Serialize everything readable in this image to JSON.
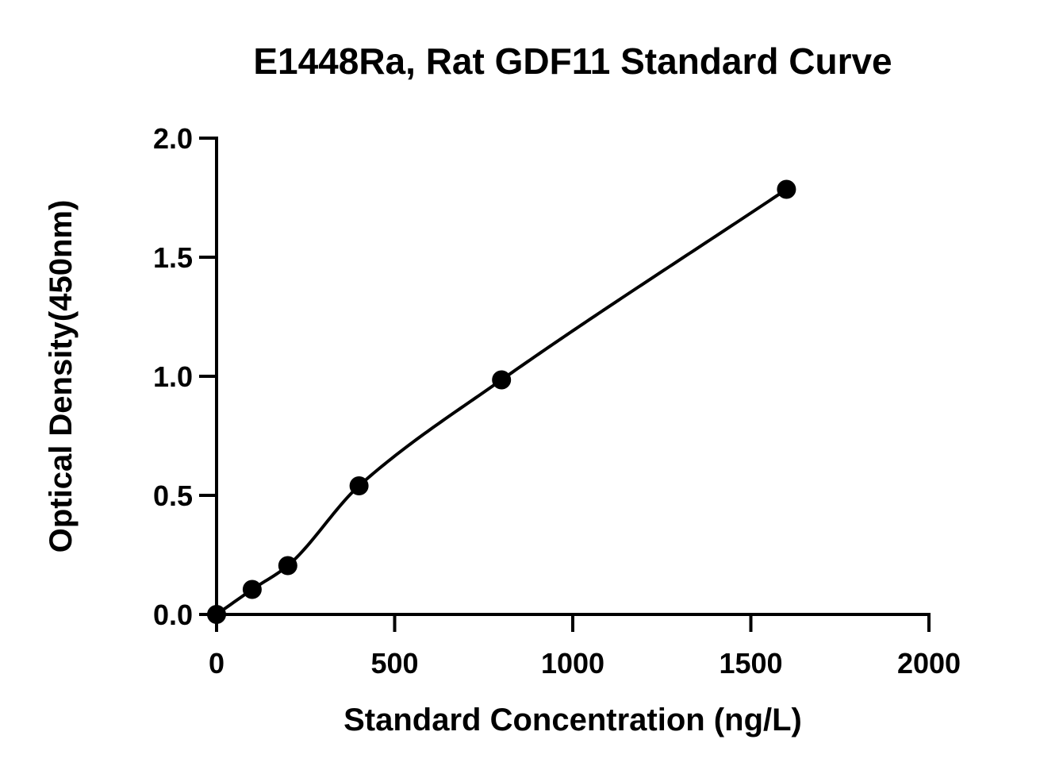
{
  "chart_data": {
    "type": "scatter",
    "title": "E1448Ra, Rat GDF11 Standard Curve",
    "xlabel": "Standard Concentration (ng/L)",
    "ylabel": "Optical Density(450nm)",
    "xlim": [
      0,
      2000
    ],
    "ylim": [
      0,
      2.0
    ],
    "x_ticks": [
      0,
      500,
      1000,
      1500,
      2000
    ],
    "x_tick_labels": [
      "0",
      "500",
      "1000",
      "1500",
      "2000"
    ],
    "y_ticks": [
      0,
      0.5,
      1.0,
      1.5,
      2.0
    ],
    "y_tick_labels": [
      "0.0",
      "0.5",
      "1.0",
      "1.5",
      "2.0"
    ],
    "grid": false,
    "legend": "none",
    "series": [
      {
        "x": [
          0,
          100,
          200,
          400,
          800,
          1600
        ],
        "values": [
          0.0,
          0.105,
          0.205,
          0.54,
          0.985,
          1.785
        ],
        "fit": "smooth-curve",
        "color": "#000000"
      }
    ]
  }
}
